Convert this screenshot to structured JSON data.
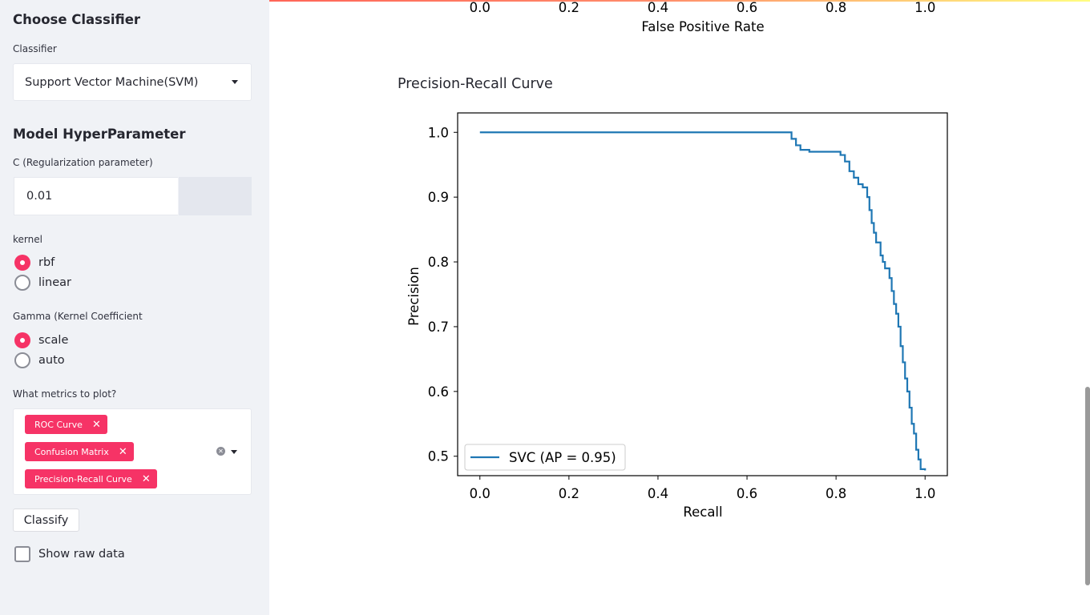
{
  "sidebar": {
    "choose_heading": "Choose Classifier",
    "classifier_label": "Classifier",
    "classifier_value": "Support Vector Machine(SVM)",
    "hyper_heading": "Model HyperParameter",
    "c_label": "C (Regularization parameter)",
    "c_value": "0.01",
    "kernel_label": "kernel",
    "kernel_options": [
      "rbf",
      "linear"
    ],
    "kernel_selected": "rbf",
    "gamma_label": "Gamma (Kernel Coefficient",
    "gamma_options": [
      "scale",
      "auto"
    ],
    "gamma_selected": "scale",
    "metrics_label": "What metrics to plot?",
    "metrics_selected": [
      "ROC Curve",
      "Confusion Matrix",
      "Precision-Recall Curve"
    ],
    "classify_label": "Classify",
    "raw_data_label": "Show raw data"
  },
  "roc_fragment": {
    "ticks": [
      "0.0",
      "0.2",
      "0.4",
      "0.6",
      "0.8",
      "1.0"
    ],
    "xlabel": "False Positive Rate"
  },
  "pr_section_title": "Precision-Recall Curve",
  "colors": {
    "accent": "#f63366",
    "curve": "#1f77b4"
  },
  "chart_data": {
    "type": "line",
    "title": "",
    "xlabel": "Recall",
    "ylabel": "Precision",
    "xlim": [
      -0.05,
      1.05
    ],
    "ylim": [
      0.47,
      1.03
    ],
    "xticks": [
      0.0,
      0.2,
      0.4,
      0.6,
      0.8,
      1.0
    ],
    "yticks": [
      0.5,
      0.6,
      0.7,
      0.8,
      0.9,
      1.0
    ],
    "xtick_labels": [
      "0.0",
      "0.2",
      "0.4",
      "0.6",
      "0.8",
      "1.0"
    ],
    "ytick_labels": [
      "0.5",
      "0.6",
      "0.7",
      "0.8",
      "0.9",
      "1.0"
    ],
    "legend": "lower-left",
    "grid": false,
    "series": [
      {
        "name": "SVC (AP = 0.95)",
        "x": [
          0.0,
          0.69,
          0.7,
          0.71,
          0.72,
          0.74,
          0.76,
          0.78,
          0.8,
          0.81,
          0.82,
          0.83,
          0.84,
          0.85,
          0.86,
          0.87,
          0.875,
          0.88,
          0.885,
          0.89,
          0.9,
          0.905,
          0.91,
          0.92,
          0.925,
          0.93,
          0.935,
          0.94,
          0.945,
          0.95,
          0.955,
          0.96,
          0.965,
          0.97,
          0.975,
          0.98,
          0.985,
          0.99,
          1.0
        ],
        "y": [
          1.0,
          1.0,
          0.99,
          0.98,
          0.973,
          0.97,
          0.97,
          0.97,
          0.97,
          0.965,
          0.955,
          0.94,
          0.93,
          0.92,
          0.915,
          0.9,
          0.88,
          0.86,
          0.845,
          0.83,
          0.81,
          0.8,
          0.79,
          0.775,
          0.755,
          0.735,
          0.72,
          0.7,
          0.67,
          0.645,
          0.62,
          0.6,
          0.575,
          0.55,
          0.535,
          0.51,
          0.495,
          0.48,
          0.478
        ]
      }
    ]
  }
}
